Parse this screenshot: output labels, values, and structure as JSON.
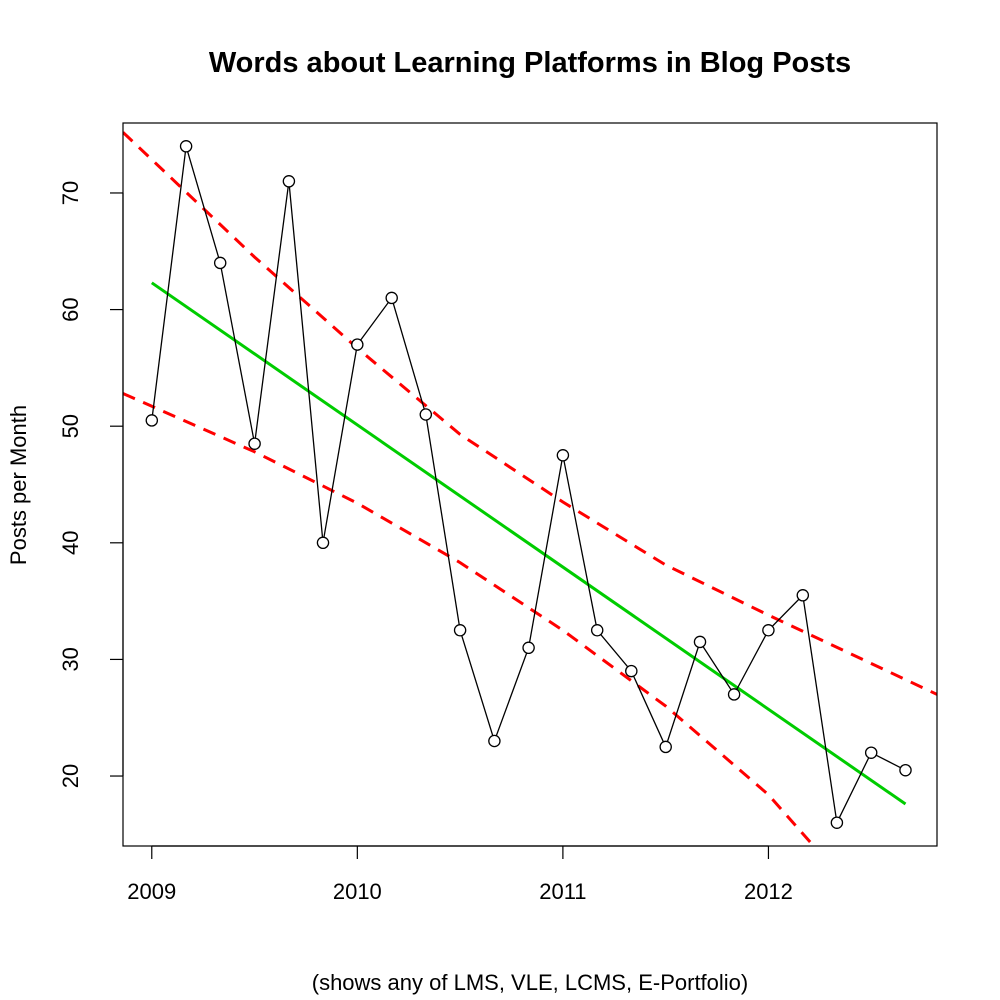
{
  "chart_data": {
    "type": "line",
    "title": "Words about Learning Platforms in Blog Posts",
    "xlabel": "(shows any of LMS, VLE, LCMS, E-Portfolio)",
    "ylabel": "Posts per Month",
    "xlim": [
      2008.86,
      2012.82
    ],
    "ylim": [
      14,
      76
    ],
    "x_ticks": [
      2009,
      2010,
      2011,
      2012
    ],
    "y_ticks": [
      20,
      30,
      40,
      50,
      60,
      70
    ],
    "grid": false,
    "series": [
      {
        "style": "points-and-lines",
        "color": "#000000",
        "x": [
          2009.0,
          2009.167,
          2009.333,
          2009.5,
          2009.667,
          2009.833,
          2010.0,
          2010.167,
          2010.333,
          2010.5,
          2010.667,
          2010.833,
          2011.0,
          2011.167,
          2011.333,
          2011.5,
          2011.667,
          2011.833,
          2012.0,
          2012.167,
          2012.333,
          2012.5,
          2012.667
        ],
        "y": [
          50.5,
          74,
          64,
          48.5,
          71,
          40,
          57,
          61,
          51,
          32.5,
          23,
          31,
          47.5,
          32.5,
          29,
          22.5,
          31.5,
          27,
          32.5,
          35.5,
          16,
          22,
          20.5
        ]
      },
      {
        "style": "solid",
        "color": "#00cc00",
        "x": [
          2009.0,
          2012.667
        ],
        "y": [
          62.3,
          17.6
        ]
      },
      {
        "style": "dashed",
        "color": "#ff0000",
        "x": [
          2008.86,
          2009.5,
          2010.0,
          2010.5,
          2011.0,
          2011.5,
          2012.0,
          2012.82
        ],
        "y": [
          75.2,
          64.5,
          56.7,
          49.3,
          43.5,
          38.1,
          33.8,
          27.0
        ]
      },
      {
        "style": "dashed",
        "color": "#ff0000",
        "x": [
          2008.86,
          2009.5,
          2010.0,
          2010.5,
          2011.0,
          2011.5,
          2012.0,
          2012.22
        ],
        "y": [
          52.8,
          47.8,
          43.4,
          38.3,
          32.5,
          26.0,
          18.4,
          14.0
        ]
      }
    ]
  }
}
